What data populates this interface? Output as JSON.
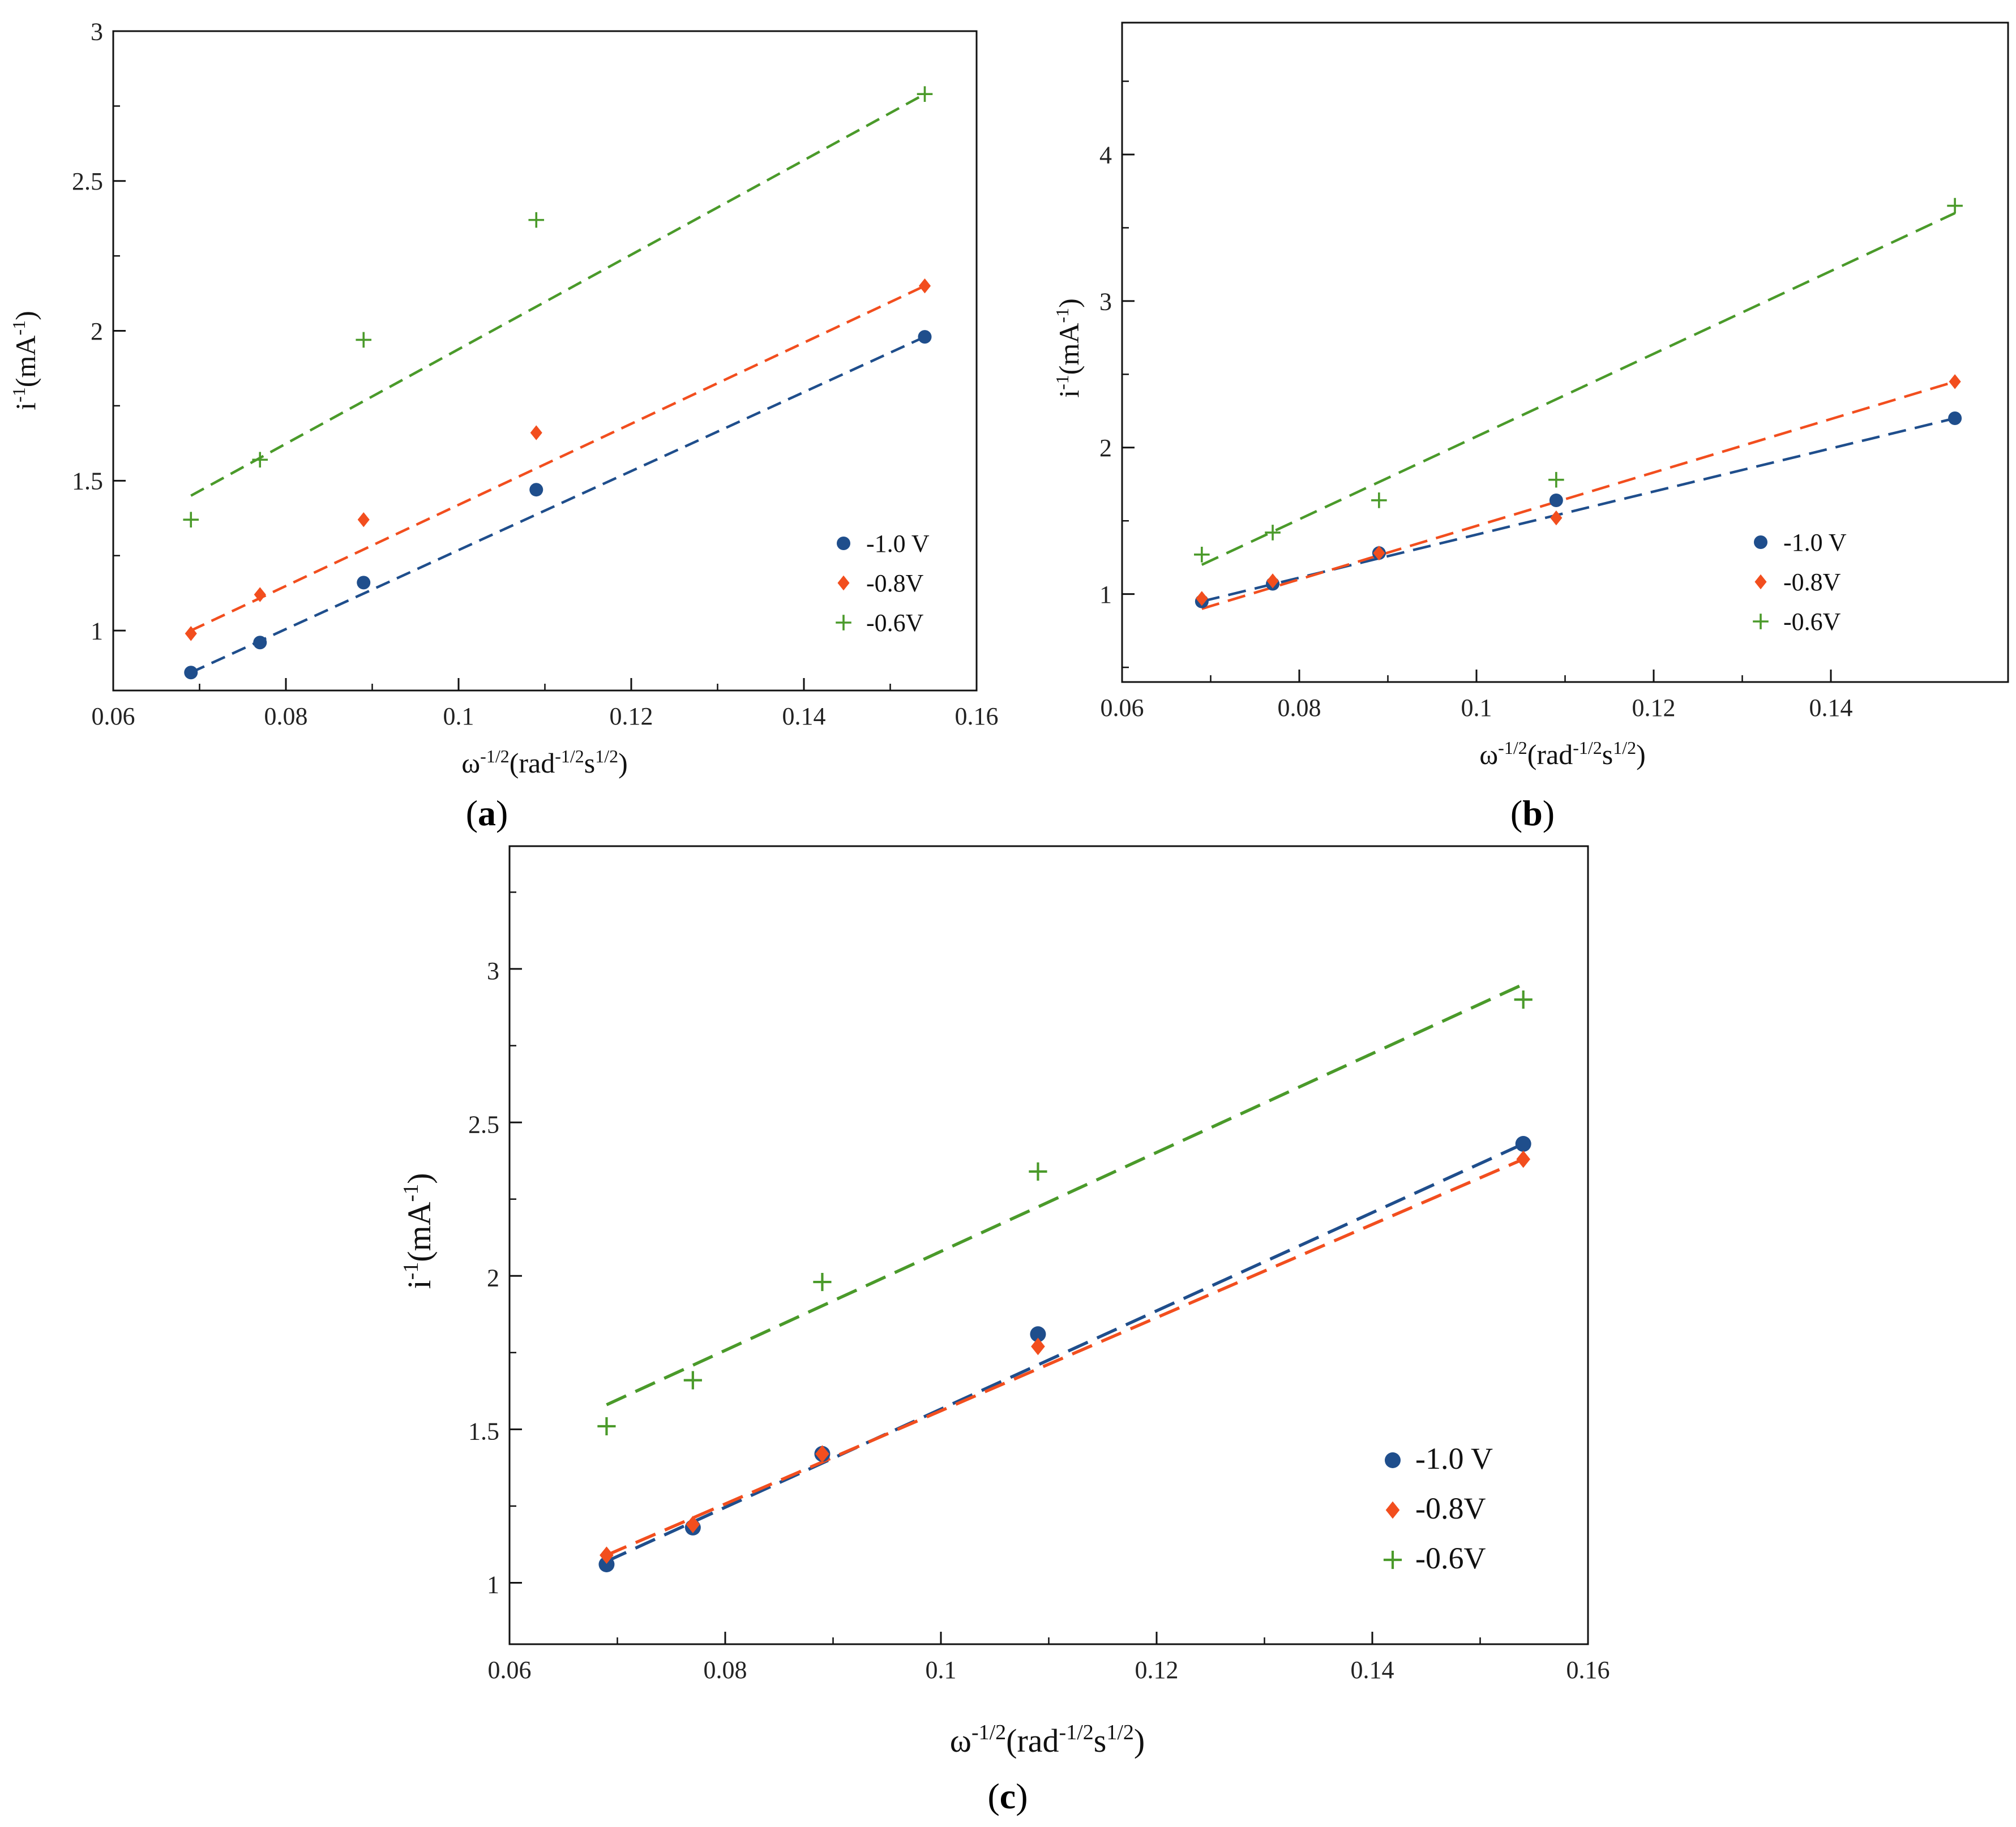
{
  "chart_data": [
    {
      "panel": "a",
      "type": "scatter",
      "xlabel": "ω",
      "xlabel_sup": "-1/2",
      "xlabel_rest": "(rad",
      "xlabel_sup2": "-1/2",
      "xlabel_rest2": "s",
      "xlabel_sup3": "1/2",
      "xlabel_end": ")",
      "ylabel": "i",
      "ylabel_sup": "-1",
      "ylabel_rest": "(mA",
      "ylabel_sup2": "-1",
      "ylabel_end": ")",
      "xlim": [
        0.06,
        0.16
      ],
      "ylim": [
        0.8,
        3.0
      ],
      "xticks": [
        "0.06",
        "0.08",
        "0.1",
        "0.12",
        "0.14",
        "0.16"
      ],
      "yticks": [
        "1",
        "1.5",
        "2",
        "2.5",
        "3"
      ],
      "x": [
        0.069,
        0.077,
        0.089,
        0.109,
        0.154
      ],
      "series": [
        {
          "name": "-1.0 V",
          "color": "#1f4e8c",
          "marker": "circle",
          "values": [
            0.86,
            0.96,
            1.16,
            1.47,
            1.98
          ],
          "fit": [
            0.86,
            1.98
          ]
        },
        {
          "name": "-0.8V",
          "color": "#f24e1e",
          "marker": "diamond",
          "values": [
            0.99,
            1.12,
            1.37,
            1.66,
            2.15
          ],
          "fit": [
            1.0,
            2.15
          ]
        },
        {
          "name": "-0.6V",
          "color": "#4a9a2a",
          "marker": "plus",
          "values": [
            1.37,
            1.57,
            1.97,
            2.37,
            2.79
          ],
          "fit": [
            1.45,
            2.79
          ]
        }
      ],
      "legend_position": "bottom-right"
    },
    {
      "panel": "b",
      "type": "scatter",
      "xlim": [
        0.06,
        0.16
      ],
      "ylim": [
        0.4,
        4.9
      ],
      "xticks": [
        "0.06",
        "0.08",
        "0.1",
        "0.12",
        "0.14"
      ],
      "yticks": [
        "1",
        "2",
        "3",
        "4"
      ],
      "x": [
        0.069,
        0.077,
        0.089,
        0.109,
        0.154
      ],
      "series": [
        {
          "name": "-1.0 V",
          "color": "#1f4e8c",
          "marker": "circle",
          "values": [
            0.95,
            1.07,
            1.28,
            1.64,
            2.2
          ],
          "fit": [
            0.95,
            2.2
          ]
        },
        {
          "name": "-0.8V",
          "color": "#f24e1e",
          "marker": "diamond",
          "values": [
            0.97,
            1.09,
            1.28,
            1.52,
            2.45
          ],
          "fit": [
            0.9,
            2.45
          ]
        },
        {
          "name": "-0.6V",
          "color": "#4a9a2a",
          "marker": "plus",
          "values": [
            1.27,
            1.42,
            1.64,
            1.78,
            3.65
          ],
          "fit": [
            1.2,
            3.6
          ]
        }
      ],
      "legend_position": "bottom-right"
    },
    {
      "panel": "c",
      "type": "scatter",
      "xlim": [
        0.06,
        0.16
      ],
      "ylim": [
        0.8,
        3.4
      ],
      "xticks": [
        "0.06",
        "0.08",
        "0.1",
        "0.12",
        "0.14",
        "0.16"
      ],
      "yticks": [
        "1",
        "1.5",
        "2",
        "2.5",
        "3"
      ],
      "x": [
        0.069,
        0.077,
        0.089,
        0.109,
        0.154
      ],
      "series": [
        {
          "name": "-1.0 V",
          "color": "#1f4e8c",
          "marker": "circle",
          "values": [
            1.06,
            1.18,
            1.42,
            1.81,
            2.43
          ],
          "fit": [
            1.07,
            2.43
          ]
        },
        {
          "name": "-0.8V",
          "color": "#f24e1e",
          "marker": "diamond",
          "values": [
            1.09,
            1.19,
            1.42,
            1.77,
            2.38
          ],
          "fit": [
            1.09,
            2.38
          ]
        },
        {
          "name": "-0.6V",
          "color": "#4a9a2a",
          "marker": "plus",
          "values": [
            1.51,
            1.66,
            1.98,
            2.34,
            2.9
          ],
          "fit": [
            1.58,
            2.95
          ]
        }
      ],
      "legend_position": "bottom-right"
    }
  ],
  "labels": {
    "a": "a",
    "b": "b",
    "c": "c"
  }
}
